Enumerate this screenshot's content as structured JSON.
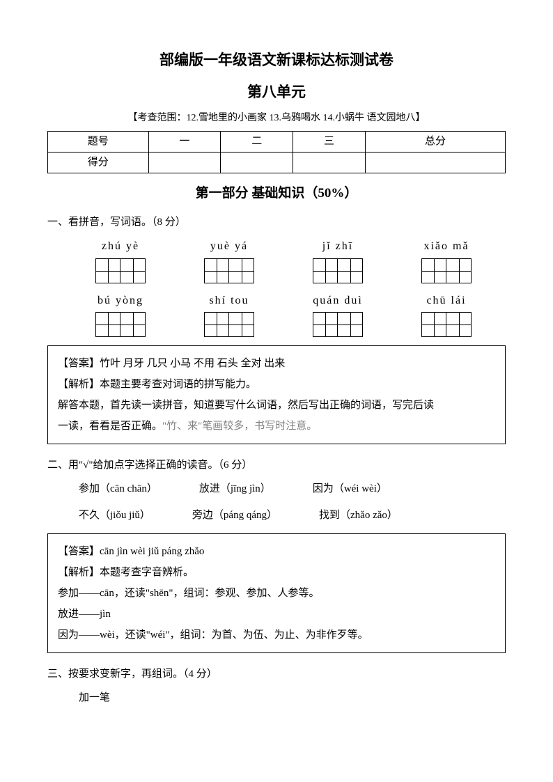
{
  "header": {
    "main_title": "部编版一年级语文新课标达标测试卷",
    "sub_title": "第八单元",
    "scope": "【考查范围：12.雪地里的小画家 13.乌鸦喝水 14.小蜗牛 语文园地八】"
  },
  "score_table": {
    "row_labels": [
      "题号",
      "得分"
    ],
    "cols": [
      "一",
      "二",
      "三",
      "总分"
    ]
  },
  "section1_title": "第一部分  基础知识（50%）",
  "q1": {
    "stem": "一、看拼音，写词语。（8 分）",
    "row1": [
      "zhú  yè",
      "yuè  yá",
      "jǐ  zhī",
      "xiǎo  mǎ"
    ],
    "row2": [
      "bú  yòng",
      "shí  tou",
      "quán  duì",
      "chū  lái"
    ],
    "answer_label": "【答案】",
    "answer_text": "竹叶 月牙 几只 小马 不用 石头 全对 出来",
    "analysis_label": "【解析】",
    "analysis_line1": "本题主要考查对词语的拼写能力。",
    "analysis_line2": "解答本题，首先读一读拼音，知道要写什么词语，然后写出正确的词语，写完后读",
    "analysis_line3_a": "一读，看看是否正确。",
    "analysis_line3_b": "\"竹、来\"笔画较多，书写时注意。"
  },
  "q2": {
    "stem": "二、用\"√\"给加点字选择正确的读音。（6 分）",
    "items_row1": [
      "参加（cān  chān）",
      "放进（jīng  jìn）",
      "因为（wéi  wèi）"
    ],
    "items_row2": [
      "不久（jiǒu  jiǔ）",
      "旁边（páng  qáng）",
      "找到（zhǎo  zǎo）"
    ],
    "answer_label": "【答案】",
    "answer_text": "cān  jìn  wèi  jiǔ  páng  zhǎo",
    "analysis_label": "【解析】",
    "analysis_line1": "本题考查字音辨析。",
    "analysis_line2": "参加——cān，还读\"shēn\"，组词：参观、参加、人参等。",
    "analysis_line3": "放进——jìn",
    "analysis_line4": "因为——wèi，还读\"wéi\"，组词：为首、为伍、为止、为非作歹等。"
  },
  "q3": {
    "stem": "三、按要求变新字，再组词。（4 分）",
    "sub": "加一笔"
  }
}
